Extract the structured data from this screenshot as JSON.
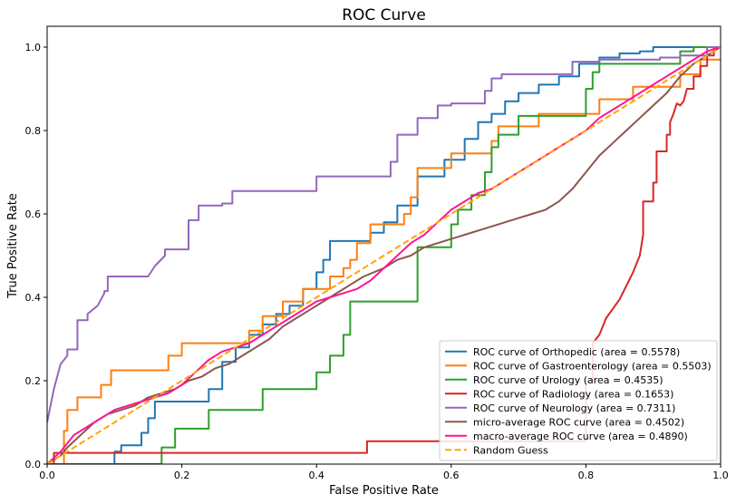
{
  "chart_data": {
    "type": "line",
    "title": "ROC Curve",
    "xlabel": "False Positive Rate",
    "ylabel": "True Positive Rate",
    "xlim": [
      0.0,
      1.0
    ],
    "ylim": [
      0.0,
      1.05
    ],
    "xticks": [
      "0.0",
      "0.2",
      "0.4",
      "0.6",
      "0.8",
      "1.0"
    ],
    "yticks": [
      "0.0",
      "0.2",
      "0.4",
      "0.6",
      "0.8",
      "1.0"
    ],
    "grid": false,
    "legend_position": "lower-right",
    "series": [
      {
        "name": "ROC curve of Orthopedic (area = 0.5578)",
        "color": "#1f77b4",
        "dash": false,
        "x": [
          0.0,
          0.1,
          0.1,
          0.11,
          0.11,
          0.14,
          0.14,
          0.15,
          0.15,
          0.16,
          0.16,
          0.24,
          0.24,
          0.26,
          0.26,
          0.28,
          0.28,
          0.3,
          0.3,
          0.32,
          0.32,
          0.34,
          0.34,
          0.36,
          0.36,
          0.38,
          0.38,
          0.4,
          0.4,
          0.41,
          0.41,
          0.42,
          0.42,
          0.48,
          0.48,
          0.5,
          0.5,
          0.52,
          0.52,
          0.55,
          0.55,
          0.59,
          0.59,
          0.62,
          0.62,
          0.64,
          0.64,
          0.66,
          0.66,
          0.68,
          0.68,
          0.7,
          0.7,
          0.73,
          0.73,
          0.76,
          0.76,
          0.79,
          0.79,
          0.82,
          0.82,
          0.85,
          0.85,
          0.88,
          0.88,
          0.9,
          0.9,
          0.93,
          0.93,
          0.97,
          0.97,
          1.0
        ],
        "y": [
          0.0,
          0.0,
          0.03,
          0.03,
          0.045,
          0.045,
          0.075,
          0.075,
          0.11,
          0.11,
          0.15,
          0.15,
          0.18,
          0.18,
          0.245,
          0.245,
          0.28,
          0.28,
          0.31,
          0.31,
          0.335,
          0.335,
          0.36,
          0.36,
          0.38,
          0.38,
          0.42,
          0.42,
          0.46,
          0.46,
          0.49,
          0.49,
          0.535,
          0.535,
          0.555,
          0.555,
          0.58,
          0.58,
          0.62,
          0.62,
          0.69,
          0.69,
          0.73,
          0.73,
          0.78,
          0.78,
          0.82,
          0.82,
          0.84,
          0.84,
          0.87,
          0.87,
          0.89,
          0.89,
          0.91,
          0.91,
          0.93,
          0.93,
          0.96,
          0.96,
          0.975,
          0.975,
          0.985,
          0.985,
          0.99,
          0.99,
          1.0,
          1.0,
          1.0,
          1.0,
          1.0,
          1.0
        ]
      },
      {
        "name": "ROC curve of Gastroenterology (area = 0.5503)",
        "color": "#ff7f0e",
        "dash": false,
        "x": [
          0.0,
          0.025,
          0.025,
          0.03,
          0.03,
          0.045,
          0.045,
          0.08,
          0.08,
          0.095,
          0.095,
          0.18,
          0.18,
          0.2,
          0.2,
          0.3,
          0.3,
          0.32,
          0.32,
          0.35,
          0.35,
          0.38,
          0.38,
          0.42,
          0.42,
          0.44,
          0.44,
          0.45,
          0.45,
          0.46,
          0.46,
          0.48,
          0.48,
          0.53,
          0.53,
          0.54,
          0.54,
          0.55,
          0.55,
          0.6,
          0.6,
          0.66,
          0.66,
          0.67,
          0.67,
          0.73,
          0.73,
          0.82,
          0.82,
          0.87,
          0.87,
          0.94,
          0.94,
          0.97,
          0.97,
          1.0
        ],
        "y": [
          0.0,
          0.0,
          0.08,
          0.08,
          0.13,
          0.13,
          0.16,
          0.16,
          0.19,
          0.19,
          0.225,
          0.225,
          0.26,
          0.26,
          0.29,
          0.29,
          0.32,
          0.32,
          0.355,
          0.355,
          0.39,
          0.39,
          0.42,
          0.42,
          0.45,
          0.45,
          0.47,
          0.47,
          0.49,
          0.49,
          0.53,
          0.53,
          0.575,
          0.575,
          0.6,
          0.6,
          0.64,
          0.64,
          0.71,
          0.71,
          0.745,
          0.745,
          0.775,
          0.775,
          0.81,
          0.81,
          0.84,
          0.84,
          0.875,
          0.875,
          0.905,
          0.905,
          0.935,
          0.935,
          0.97,
          0.97
        ]
      },
      {
        "name": "ROC curve of Urology (area = 0.4535)",
        "color": "#2ca02c",
        "dash": false,
        "x": [
          0.0,
          0.17,
          0.17,
          0.19,
          0.19,
          0.24,
          0.24,
          0.32,
          0.32,
          0.4,
          0.4,
          0.42,
          0.42,
          0.44,
          0.44,
          0.45,
          0.45,
          0.55,
          0.55,
          0.6,
          0.6,
          0.61,
          0.61,
          0.63,
          0.63,
          0.65,
          0.65,
          0.66,
          0.66,
          0.67,
          0.67,
          0.7,
          0.7,
          0.8,
          0.8,
          0.81,
          0.81,
          0.82,
          0.82,
          0.83,
          0.83,
          0.94,
          0.94,
          0.96,
          0.96,
          0.98,
          0.98,
          1.0
        ],
        "y": [
          0.0,
          0.0,
          0.04,
          0.04,
          0.085,
          0.085,
          0.13,
          0.13,
          0.18,
          0.18,
          0.22,
          0.22,
          0.26,
          0.26,
          0.31,
          0.31,
          0.39,
          0.39,
          0.52,
          0.52,
          0.575,
          0.575,
          0.61,
          0.61,
          0.645,
          0.645,
          0.7,
          0.7,
          0.76,
          0.76,
          0.79,
          0.79,
          0.835,
          0.835,
          0.9,
          0.9,
          0.94,
          0.94,
          0.96,
          0.96,
          0.96,
          0.96,
          0.99,
          0.99,
          1.0,
          1.0,
          1.0,
          1.0
        ]
      },
      {
        "name": "ROC curve of Radiology (area = 0.1653)",
        "color": "#d62728",
        "dash": false,
        "x": [
          0.0,
          0.01,
          0.01,
          0.475,
          0.475,
          0.8,
          0.8,
          0.81,
          0.81,
          0.82,
          0.83,
          0.85,
          0.87,
          0.88,
          0.885,
          0.885,
          0.9,
          0.9,
          0.905,
          0.905,
          0.92,
          0.92,
          0.925,
          0.925,
          0.93,
          0.935,
          0.94,
          0.945,
          0.95,
          0.96,
          0.96,
          0.97,
          0.97,
          0.98,
          0.98,
          0.99,
          0.99,
          1.0
        ],
        "y": [
          0.0,
          0.0,
          0.027,
          0.027,
          0.055,
          0.055,
          0.2,
          0.2,
          0.29,
          0.31,
          0.35,
          0.395,
          0.46,
          0.5,
          0.55,
          0.63,
          0.63,
          0.675,
          0.675,
          0.75,
          0.75,
          0.79,
          0.79,
          0.82,
          0.84,
          0.865,
          0.86,
          0.87,
          0.9,
          0.9,
          0.93,
          0.93,
          0.955,
          0.955,
          0.98,
          0.98,
          1.0,
          1.0
        ]
      },
      {
        "name": "ROC curve of Neurology (area = 0.7311)",
        "color": "#9467bd",
        "dash": false,
        "x": [
          0.0,
          0.01,
          0.02,
          0.03,
          0.03,
          0.045,
          0.045,
          0.06,
          0.06,
          0.075,
          0.085,
          0.085,
          0.09,
          0.09,
          0.15,
          0.16,
          0.175,
          0.175,
          0.21,
          0.21,
          0.225,
          0.225,
          0.26,
          0.26,
          0.275,
          0.275,
          0.4,
          0.4,
          0.51,
          0.51,
          0.52,
          0.52,
          0.55,
          0.55,
          0.58,
          0.58,
          0.6,
          0.6,
          0.65,
          0.65,
          0.66,
          0.66,
          0.675,
          0.675,
          0.78,
          0.78,
          0.82,
          0.82,
          0.91,
          0.91,
          0.94,
          0.94,
          0.98,
          0.98,
          1.0
        ],
        "y": [
          0.1,
          0.18,
          0.24,
          0.26,
          0.275,
          0.275,
          0.345,
          0.345,
          0.36,
          0.38,
          0.41,
          0.415,
          0.415,
          0.45,
          0.45,
          0.475,
          0.5,
          0.515,
          0.515,
          0.585,
          0.585,
          0.62,
          0.62,
          0.625,
          0.625,
          0.655,
          0.655,
          0.69,
          0.69,
          0.725,
          0.725,
          0.79,
          0.79,
          0.83,
          0.83,
          0.86,
          0.86,
          0.865,
          0.865,
          0.895,
          0.895,
          0.925,
          0.925,
          0.935,
          0.935,
          0.965,
          0.965,
          0.97,
          0.97,
          0.975,
          0.975,
          0.98,
          0.98,
          1.0,
          1.0
        ]
      },
      {
        "name": "micro-average ROC curve (area = 0.4502)",
        "color": "#8c564b",
        "dash": false,
        "x": [
          0.0,
          0.02,
          0.03,
          0.05,
          0.07,
          0.09,
          0.11,
          0.13,
          0.15,
          0.17,
          0.19,
          0.21,
          0.23,
          0.25,
          0.27,
          0.29,
          0.31,
          0.33,
          0.35,
          0.37,
          0.39,
          0.41,
          0.43,
          0.45,
          0.47,
          0.5,
          0.52,
          0.54,
          0.56,
          0.58,
          0.6,
          0.62,
          0.64,
          0.66,
          0.68,
          0.7,
          0.72,
          0.74,
          0.76,
          0.78,
          0.8,
          0.82,
          0.84,
          0.86,
          0.88,
          0.9,
          0.92,
          0.94,
          0.96,
          0.98,
          1.0
        ],
        "y": [
          0.0,
          0.02,
          0.04,
          0.07,
          0.1,
          0.12,
          0.13,
          0.14,
          0.16,
          0.17,
          0.18,
          0.2,
          0.21,
          0.23,
          0.24,
          0.26,
          0.28,
          0.3,
          0.33,
          0.35,
          0.37,
          0.39,
          0.41,
          0.43,
          0.45,
          0.47,
          0.49,
          0.5,
          0.52,
          0.53,
          0.54,
          0.55,
          0.56,
          0.57,
          0.58,
          0.59,
          0.6,
          0.61,
          0.63,
          0.66,
          0.7,
          0.74,
          0.77,
          0.8,
          0.83,
          0.86,
          0.89,
          0.93,
          0.96,
          0.98,
          1.0
        ]
      },
      {
        "name": "macro-average ROC curve (area = 0.4890)",
        "color": "#ff1493",
        "dash": false,
        "x": [
          0.0,
          0.02,
          0.04,
          0.06,
          0.08,
          0.1,
          0.12,
          0.14,
          0.16,
          0.18,
          0.2,
          0.22,
          0.24,
          0.26,
          0.28,
          0.3,
          0.32,
          0.34,
          0.36,
          0.38,
          0.4,
          0.42,
          0.44,
          0.46,
          0.48,
          0.5,
          0.52,
          0.54,
          0.56,
          0.58,
          0.6,
          0.62,
          0.64,
          0.66,
          0.68,
          0.7,
          0.72,
          0.74,
          0.76,
          0.78,
          0.8,
          0.82,
          0.84,
          0.86,
          0.88,
          0.9,
          0.92,
          0.94,
          0.96,
          0.98,
          1.0
        ],
        "y": [
          0.0,
          0.03,
          0.07,
          0.09,
          0.11,
          0.13,
          0.14,
          0.15,
          0.16,
          0.17,
          0.19,
          0.22,
          0.25,
          0.27,
          0.28,
          0.29,
          0.31,
          0.33,
          0.35,
          0.37,
          0.39,
          0.4,
          0.41,
          0.42,
          0.44,
          0.47,
          0.5,
          0.53,
          0.55,
          0.58,
          0.61,
          0.63,
          0.65,
          0.66,
          0.68,
          0.7,
          0.72,
          0.74,
          0.76,
          0.78,
          0.8,
          0.83,
          0.85,
          0.87,
          0.89,
          0.91,
          0.93,
          0.95,
          0.97,
          0.99,
          1.0
        ]
      },
      {
        "name": "Random Guess",
        "color": "#ffa500",
        "dash": true,
        "x": [
          0.0,
          1.0
        ],
        "y": [
          0.0,
          1.0
        ]
      }
    ]
  }
}
